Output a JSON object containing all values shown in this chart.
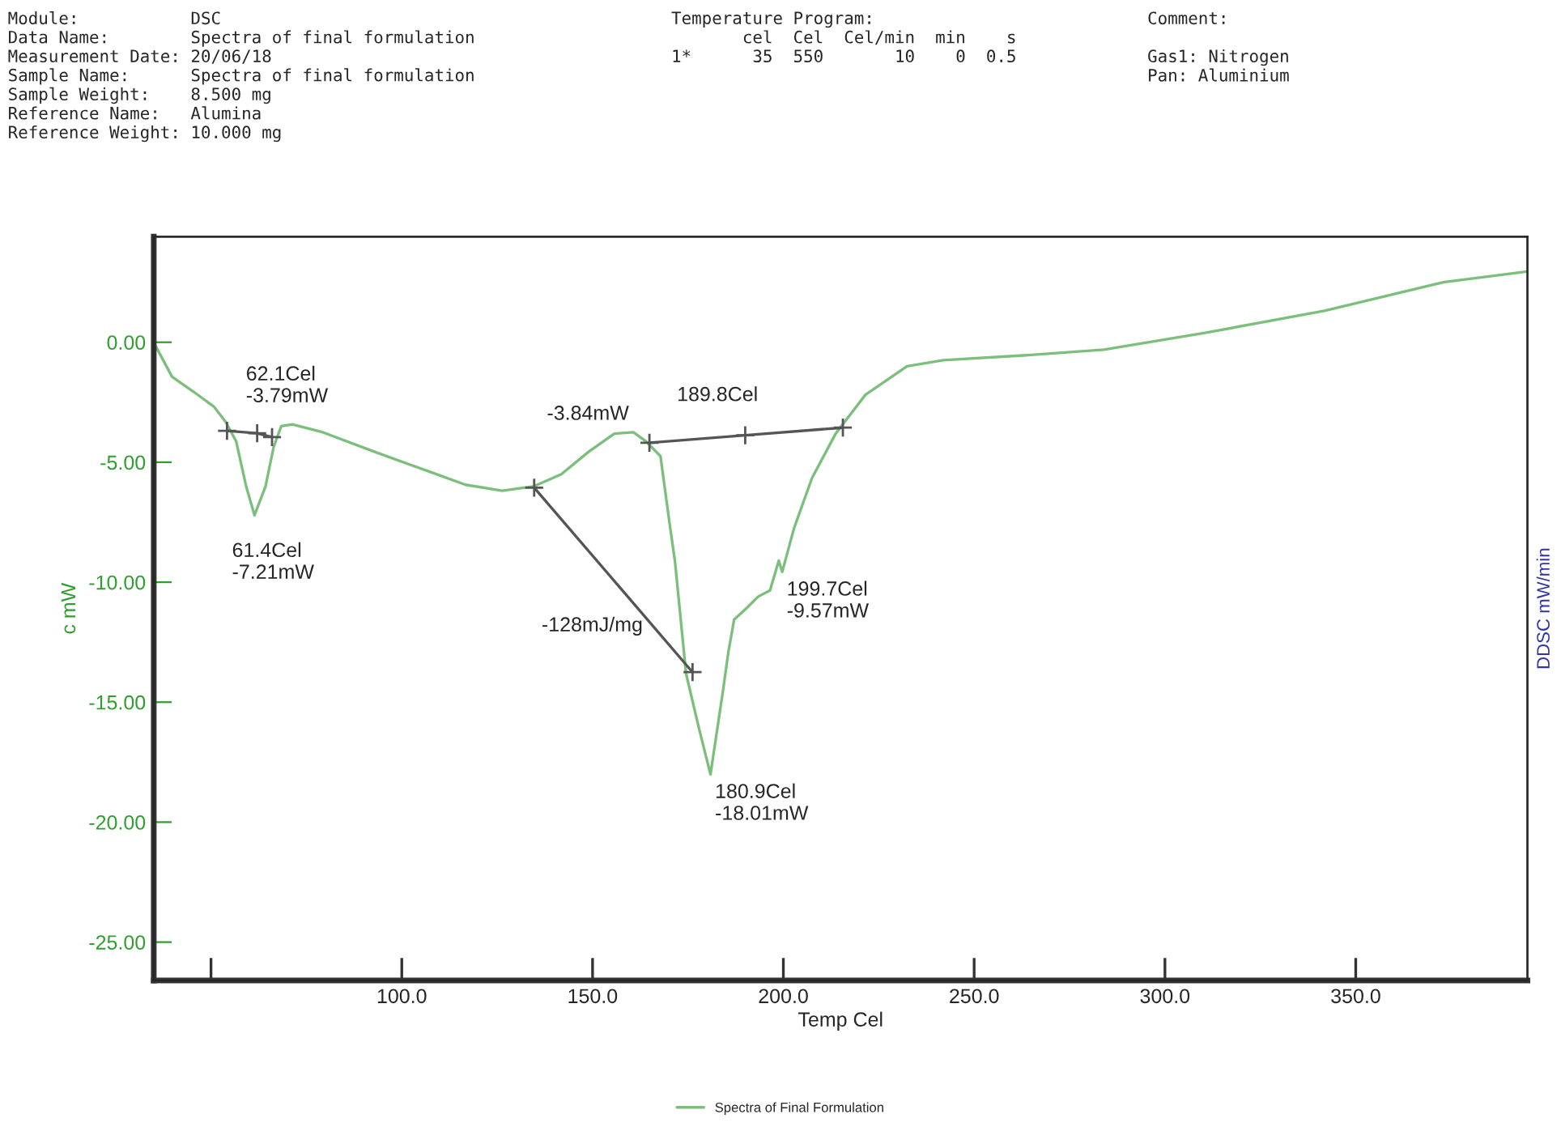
{
  "chart_data": {
    "type": "line",
    "annotations": [
      "Module:           DSC\nData Name:        Spectra of final formulation\nMeasurement Date: 20/06/18\nSample Name:      Spectra of final formulation\nSample Weight:    8.500 mg\nReference Name:   Alumina\nReference Weight: 10.000 mg",
      "Temperature Program:\n       cel  Cel  Cel/min  min    s\n1*      35  550       10    0  0.5",
      "Comment:\n\nGas1: Nitrogen\nPan: Aluminium",
      {
        "text": "62.1Cel\n-3.79mW",
        "x": 62.1,
        "y": -3.79
      },
      {
        "text": "61.4Cel\n-7.21mW",
        "x": 61.4,
        "y": -7.21
      },
      {
        "text": "-3.84mW",
        "x": 155.7,
        "y": -3.84
      },
      {
        "text": "189.8Cel",
        "x": 189.8,
        "y": -3.9
      },
      {
        "text": "-128mJ/mg",
        "x": 172,
        "y": -10.5
      },
      {
        "text": "180.9Cel\n-18.01mW",
        "x": 180.9,
        "y": -18.01
      },
      {
        "text": "199.7Cel\n-9.57mW",
        "x": 199.7,
        "y": -9.57
      }
    ],
    "xlabel": "Temp Cel",
    "ylabel": "c mW",
    "y2label": "DDSC mW/min",
    "series": [
      {
        "name": "Spectra of Final Formulation",
        "color": "#7cbf7c",
        "marker": "none",
        "x": [
          35.6,
          39.8,
          45.4,
          50.8,
          53.8,
          56.6,
          59.2,
          61.4,
          64.3,
          66.4,
          68.4,
          71.3,
          78.9,
          92.8,
          107.0,
          116.7,
          126.3,
          134.7,
          141.8,
          149.0,
          155.7,
          160.7,
          164.0,
          167.8,
          170.3,
          171.6,
          174.5,
          177.9,
          180.9,
          184.2,
          185.6,
          187.1,
          190.5,
          193.4,
          196.5,
          198.8,
          199.7,
          202.8,
          207.5,
          213.7,
          221.5,
          232.4,
          241.9,
          263.7,
          284.0,
          310.5,
          341.8,
          372.9,
          394.9
        ],
        "values": [
          -0.19,
          -1.44,
          -2.06,
          -2.69,
          -3.31,
          -4.13,
          -6.0,
          -7.21,
          -6.0,
          -4.38,
          -3.5,
          -3.42,
          -3.73,
          -4.56,
          -5.38,
          -5.94,
          -6.19,
          -6.0,
          -5.5,
          -4.56,
          -3.81,
          -3.75,
          -4.13,
          -4.75,
          -7.69,
          -9.13,
          -13.81,
          -16.1,
          -18.01,
          -14.5,
          -12.9,
          -11.56,
          -11.06,
          -10.6,
          -10.34,
          -9.1,
          -9.57,
          -7.75,
          -5.66,
          -3.81,
          -2.19,
          -1.0,
          -0.75,
          -0.54,
          -0.31,
          0.39,
          1.31,
          2.5,
          2.95
        ]
      },
      {
        "color": "#555555",
        "marker": "cross",
        "x": [
          54.2,
          62.1,
          66.0
        ],
        "values": [
          -3.69,
          -3.79,
          -3.95
        ]
      },
      {
        "color": "#555555",
        "marker": "cross",
        "x": [
          134.7,
          176.2
        ],
        "values": [
          -6.06,
          -13.75
        ]
      },
      {
        "color": "#555555",
        "marker": "cross",
        "x": [
          164.9,
          190.0,
          215.6
        ],
        "values": [
          -4.19,
          -3.88,
          -3.56
        ]
      }
    ],
    "xlim": [
      35,
      395
    ],
    "ylim": [
      -26.6,
      4.4
    ],
    "xticks": [
      {
        "value": 50,
        "label": null
      },
      {
        "value": 100,
        "label": "100.0"
      },
      {
        "value": 150,
        "label": "150.0"
      },
      {
        "value": 200,
        "label": "200.0"
      },
      {
        "value": 250,
        "label": "250.0"
      },
      {
        "value": 300,
        "label": "300.0"
      },
      {
        "value": 350,
        "label": "350.0"
      }
    ],
    "yticks": [
      {
        "value": 0,
        "label": "0.00"
      },
      {
        "value": -5,
        "label": "-5.00"
      },
      {
        "value": -10,
        "label": "-10.00"
      },
      {
        "value": -15,
        "label": "-15.00"
      },
      {
        "value": -20,
        "label": "-20.00"
      },
      {
        "value": -25,
        "label": "-25.00"
      }
    ],
    "grid": false,
    "legend": "bottom"
  }
}
